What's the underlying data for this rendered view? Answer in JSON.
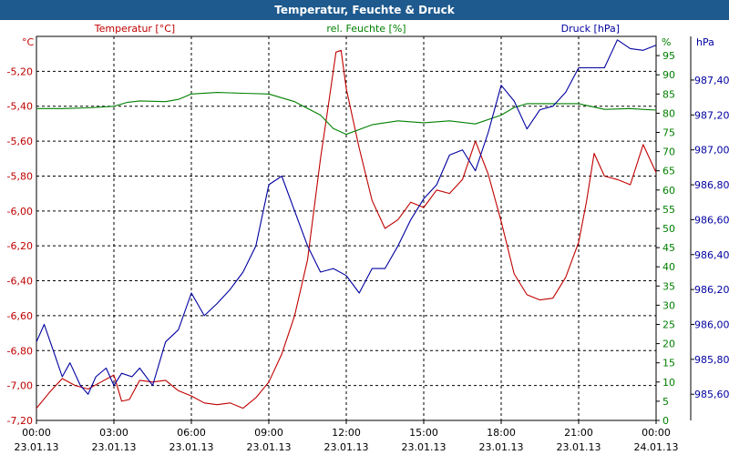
{
  "chart_data": {
    "type": "line",
    "title": "Temperatur, Feuchte & Druck",
    "x_ticks": [
      {
        "time": "00:00",
        "date": "23.01.13"
      },
      {
        "time": "03:00",
        "date": "23.01.13"
      },
      {
        "time": "06:00",
        "date": "23.01.13"
      },
      {
        "time": "09:00",
        "date": "23.01.13"
      },
      {
        "time": "12:00",
        "date": "23.01.13"
      },
      {
        "time": "15:00",
        "date": "23.01.13"
      },
      {
        "time": "18:00",
        "date": "23.01.13"
      },
      {
        "time": "21:00",
        "date": "23.01.13"
      },
      {
        "time": "00:00",
        "date": "24.01.13"
      }
    ],
    "x_range_hours": [
      0,
      24
    ],
    "grid": true,
    "axes": {
      "temperature": {
        "unit": "°C",
        "range": [
          -7.2,
          -5.0
        ],
        "ticks": [
          "-5,20",
          "-5,40",
          "-5,60",
          "-5,80",
          "-6,00",
          "-6,20",
          "-6,40",
          "-6,60",
          "-6,80",
          "-7,00",
          "-7,20"
        ],
        "color": "#c00000"
      },
      "humidity": {
        "unit": "%",
        "range": [
          0,
          100
        ],
        "ticks": [
          "95",
          "90",
          "85",
          "80",
          "75",
          "70",
          "65",
          "60",
          "55",
          "50",
          "45",
          "40",
          "35",
          "30",
          "25",
          "20",
          "15",
          "10",
          "5",
          "0"
        ],
        "color": "#008000"
      },
      "pressure": {
        "unit": "hPa",
        "range": [
          985.45,
          987.65
        ],
        "ticks": [
          "987,40",
          "987,20",
          "987,00",
          "986,80",
          "986,60",
          "986,40",
          "986,20",
          "986,00",
          "985,80",
          "985,60"
        ],
        "color": "#0000a0"
      }
    },
    "series": [
      {
        "name": "Temperatur [°C]",
        "axis": "temperature",
        "color": "#c00000",
        "x": [
          0,
          0.5,
          1,
          1.5,
          2,
          2.5,
          3,
          3.3,
          3.6,
          4,
          4.5,
          5,
          5.5,
          6,
          6.5,
          7,
          7.5,
          8,
          8.5,
          9,
          9.5,
          10,
          10.5,
          11,
          11.3,
          11.6,
          11.8,
          12,
          12.5,
          13,
          13.5,
          14,
          14.5,
          15,
          15.5,
          16,
          16.5,
          17,
          17.5,
          18,
          18.5,
          19,
          19.5,
          20,
          20.5,
          21,
          21.3,
          21.6,
          22,
          22.5,
          23,
          23.5,
          24
        ],
        "values": [
          -7.13,
          -7.04,
          -6.96,
          -7.0,
          -7.02,
          -6.98,
          -6.94,
          -7.09,
          -7.08,
          -6.97,
          -6.98,
          -6.97,
          -7.03,
          -7.06,
          -7.1,
          -7.11,
          -7.1,
          -7.13,
          -7.07,
          -6.98,
          -6.82,
          -6.6,
          -6.28,
          -5.7,
          -5.4,
          -5.09,
          -5.08,
          -5.3,
          -5.64,
          -5.94,
          -6.1,
          -6.05,
          -5.95,
          -5.98,
          -5.88,
          -5.9,
          -5.82,
          -5.6,
          -5.79,
          -6.06,
          -6.36,
          -6.48,
          -6.51,
          -6.5,
          -6.38,
          -6.18,
          -5.95,
          -5.67,
          -5.8,
          -5.82,
          -5.85,
          -5.62,
          -5.78
        ]
      },
      {
        "name": "rel. Feuchte [%]",
        "axis": "humidity",
        "color": "#008000",
        "x": [
          0,
          1,
          2,
          3,
          3.5,
          4,
          5,
          5.5,
          6,
          7,
          8,
          9,
          10,
          11,
          11.5,
          12,
          13,
          14,
          15,
          16,
          17,
          18,
          18.5,
          19,
          20,
          21,
          22,
          23,
          23.5,
          24
        ],
        "values": [
          81.2,
          81.2,
          81.4,
          81.8,
          82.8,
          83.2,
          83.0,
          83.6,
          85.0,
          85.4,
          85.2,
          85.0,
          83.0,
          79.5,
          76.0,
          74.5,
          77.0,
          78.0,
          77.5,
          78.0,
          77.2,
          79.5,
          81.5,
          82.5,
          82.5,
          82.5,
          81.0,
          81.2,
          81.0,
          80.8
        ]
      },
      {
        "name": "Druck [hPa]",
        "axis": "pressure",
        "color": "#0000a0",
        "x": [
          0,
          0.3,
          0.7,
          1,
          1.3,
          1.7,
          2,
          2.3,
          2.7,
          3,
          3.3,
          3.7,
          4,
          4.5,
          5,
          5.5,
          6,
          6.5,
          7,
          7.5,
          8,
          8.5,
          9,
          9.5,
          10,
          10.5,
          11,
          11.5,
          12,
          12.5,
          13,
          13.5,
          14,
          14.5,
          15,
          15.5,
          16,
          16.5,
          17,
          17.5,
          18,
          18.5,
          19,
          19.5,
          20,
          20.5,
          21,
          21.5,
          22,
          22.5,
          23,
          23.5,
          24
        ],
        "values": [
          985.9,
          986.0,
          985.83,
          985.7,
          985.78,
          985.65,
          985.6,
          985.7,
          985.75,
          985.65,
          985.72,
          985.7,
          985.75,
          985.65,
          985.9,
          985.97,
          986.18,
          986.05,
          986.12,
          986.2,
          986.3,
          986.45,
          986.8,
          986.85,
          986.65,
          986.45,
          986.3,
          986.32,
          986.28,
          986.18,
          986.32,
          986.32,
          986.45,
          986.6,
          986.72,
          986.8,
          986.97,
          987.0,
          986.88,
          987.1,
          987.37,
          987.28,
          987.12,
          987.23,
          987.25,
          987.33,
          987.47,
          987.47,
          987.47,
          987.63,
          987.58,
          987.57,
          987.6
        ]
      }
    ]
  }
}
